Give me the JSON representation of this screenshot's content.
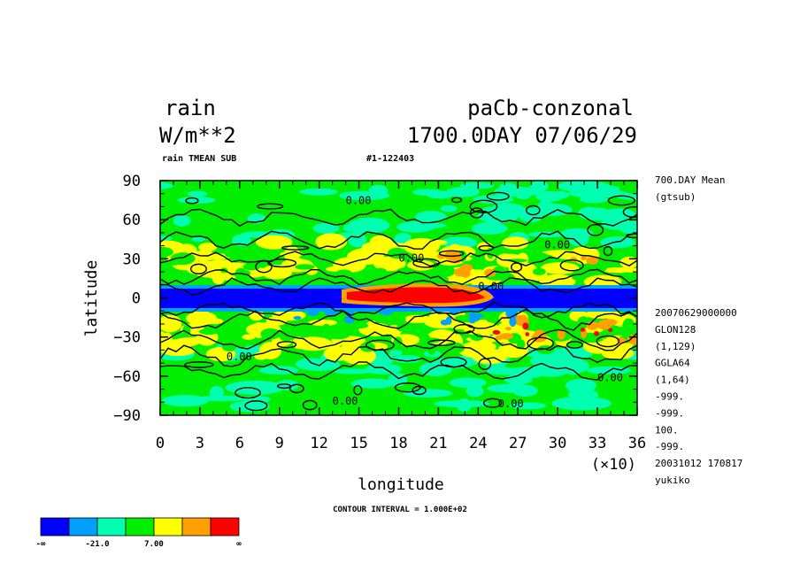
{
  "header": {
    "var_name": "rain",
    "units": "W/m**2",
    "experiment": "paCb-conzonal",
    "time_label": "1700.0DAY 07/06/29",
    "sub_label": "rain TMEAN SUB",
    "run_id": "#1-122403"
  },
  "side_info": {
    "top_lines": [
      "700.DAY Mean",
      "(gtsub)"
    ],
    "meta_lines": [
      "20070629000000",
      "GLON128",
      "(1,129)",
      "GGLA64",
      "(1,64)",
      "-999.",
      "-999.",
      "100.",
      "-999.",
      "20031012 170817",
      "yukiko"
    ]
  },
  "footer": {
    "contour_interval": "CONTOUR INTERVAL = 1.000E+02"
  },
  "colors": {
    "blue": "#0000ff",
    "lightblue": "#00a0ff",
    "cyan": "#00ffb0",
    "green": "#00ee00",
    "yellow": "#ffff00",
    "orange": "#ffa000",
    "red": "#ff0000",
    "contour": "#000000"
  },
  "chart_data": {
    "type": "heatmap",
    "title": "rain",
    "xlabel": "longitude",
    "ylabel": "latitude",
    "x_ticks": [
      "0",
      "3",
      "6",
      "9",
      "12",
      "15",
      "18",
      "21",
      "24",
      "27",
      "30",
      "33",
      "36"
    ],
    "x_multiplier": "(×10)",
    "y_ticks": [
      "90",
      "60",
      "30",
      "0",
      "−30",
      "−60",
      "−90"
    ],
    "xlim": [
      0,
      360
    ],
    "ylim": [
      -90,
      90
    ],
    "contour_labels": [
      "0.00",
      "0.00",
      "0.00",
      "0.00",
      "0.00",
      "0.00",
      "0.00",
      "0.00"
    ],
    "colorbar": {
      "colors": [
        "#0000ff",
        "#00a0ff",
        "#00ffb0",
        "#00ee00",
        "#ffff00",
        "#ffa000",
        "#ff0000"
      ],
      "labels": [
        "-∞",
        "-21.0",
        "7.00",
        "∞"
      ]
    },
    "zonal_bands": [
      {
        "lat_from": 90,
        "lat_to": 75,
        "level": "green"
      },
      {
        "lat_from": 75,
        "lat_to": 40,
        "level": "green"
      },
      {
        "lat_from": 40,
        "lat_to": 10,
        "level": "yellow"
      },
      {
        "lat_from": 8,
        "lat_to": -8,
        "level": "blue"
      },
      {
        "lat_from": -8,
        "lat_to": -38,
        "level": "green"
      },
      {
        "lat_from": -60,
        "lat_to": -90,
        "level": "green"
      }
    ],
    "red_band": {
      "lon_from": 130,
      "lon_to": 250,
      "lat_from": 8,
      "lat_to": -6
    }
  }
}
